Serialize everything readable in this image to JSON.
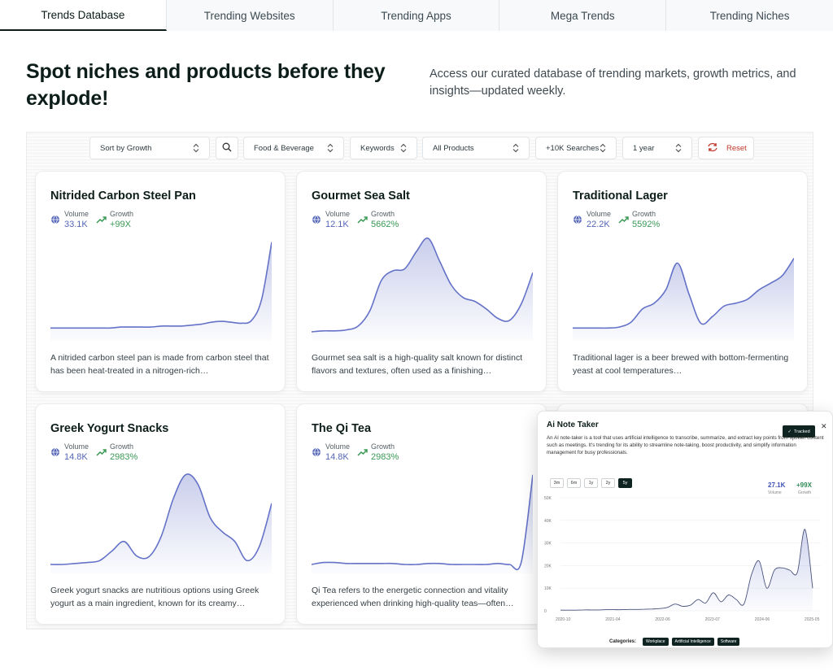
{
  "tabs": [
    {
      "label": "Trends Database",
      "active": true
    },
    {
      "label": "Trending Websites",
      "active": false
    },
    {
      "label": "Trending Apps",
      "active": false
    },
    {
      "label": "Mega Trends",
      "active": false
    },
    {
      "label": "Trending Niches",
      "active": false
    }
  ],
  "hero": {
    "title": "Spot niches and products before they explode!",
    "subtitle": "Access our curated database of trending markets, growth metrics, and insights—updated weekly."
  },
  "filters": {
    "sort": "Sort by Growth",
    "category": "Food & Beverage",
    "keywords": "Keywords",
    "products": "All Products",
    "searches": "+10K Searches",
    "period": "1 year",
    "reset": "Reset"
  },
  "icons": {
    "search": "search-icon",
    "volume": "globe-icon",
    "growth": "trending-up-icon",
    "reset": "refresh-icon",
    "chevron": "chevron-up-down-icon",
    "close": "close-icon",
    "check": "check-icon"
  },
  "colors": {
    "accent": "#0f2420",
    "volume": "#5566b8",
    "growth": "#3a9a55",
    "spark_line": "#6472c7",
    "reset": "#c0392b"
  },
  "metric_labels": {
    "volume": "Volume",
    "growth": "Growth"
  },
  "cards": [
    {
      "title": "Nitrided Carbon Steel Pan",
      "volume": "33.1K",
      "growth": "+99X",
      "description": "A nitrided carbon steel pan is made from carbon steel that has been heat-treated in a nitrogen-rich…",
      "trend": [
        10,
        10,
        10,
        10,
        10,
        10,
        10,
        11,
        11,
        11,
        11,
        12,
        12,
        12,
        13,
        14,
        16,
        17,
        16,
        15,
        18,
        40,
        100
      ]
    },
    {
      "title": "Gourmet Sea Salt",
      "volume": "12.1K",
      "growth": "5662%",
      "description": "Gourmet sea salt is a high-quality salt known for distinct flavors and textures, often used as a finishing…",
      "trend": [
        6,
        7,
        7,
        8,
        12,
        28,
        60,
        70,
        72,
        90,
        104,
        80,
        55,
        42,
        38,
        30,
        20,
        18,
        35,
        68
      ]
    },
    {
      "title": "Traditional Lager",
      "volume": "22.2K",
      "growth": "5592%",
      "description": "Traditional lager is a beer brewed with bottom-fermenting yeast at cool temperatures…",
      "trend": [
        10,
        10,
        10,
        10,
        11,
        16,
        30,
        36,
        50,
        78,
        45,
        15,
        22,
        33,
        36,
        40,
        50,
        57,
        65,
        83
      ]
    },
    {
      "title": "Greek Yogurt Snacks",
      "volume": "14.8K",
      "growth": "2983%",
      "description": "Greek yogurt snacks are nutritious options using Greek yogurt as a main ingredient, known for its creamy…",
      "trend": [
        6,
        6,
        7,
        8,
        10,
        20,
        30,
        15,
        14,
        35,
        75,
        100,
        90,
        55,
        40,
        30,
        10,
        25,
        70
      ]
    },
    {
      "title": "The Qi Tea",
      "volume": "14.8K",
      "growth": "2983%",
      "description": "Qi Tea refers to the energetic connection and vitality experienced when drinking high-quality teas—often…",
      "trend": [
        6,
        8,
        8,
        7,
        7,
        7,
        7,
        7,
        6,
        6,
        7,
        7,
        6,
        6,
        6,
        6,
        7,
        6,
        8,
        100
      ]
    }
  ],
  "popup": {
    "title": "Ai Note Taker",
    "tracked": "Tracked",
    "description": "An AI note-taker is a tool that uses artificial intelligence to transcribe, summarize, and extract key points from spoken content such as meetings. It's trending for its ability to streamline note-taking, boost productivity, and simplify information management for busy professionals.",
    "ranges": [
      {
        "label": "3m",
        "active": false
      },
      {
        "label": "6m",
        "active": false
      },
      {
        "label": "1y",
        "active": false
      },
      {
        "label": "2y",
        "active": false
      },
      {
        "label": "5y",
        "active": true
      }
    ],
    "volume": "27.1K",
    "volume_label": "Volume",
    "growth": "+99X",
    "growth_label": "Growth",
    "categories_label": "Categories:",
    "categories": [
      "Workplace",
      "Artificial Intelligence",
      "Software"
    ],
    "chart": {
      "y_ticks": [
        "50K",
        "40K",
        "30K",
        "20K",
        "10K",
        "0"
      ],
      "x_ticks": [
        "2020-10",
        "2021-04",
        "2022-06",
        "2023-07",
        "2024-06",
        "2025-05"
      ],
      "ylim": [
        0,
        50
      ],
      "values": [
        0.3,
        0.3,
        0.3,
        0.4,
        0.4,
        0.4,
        0.5,
        0.5,
        0.5,
        0.6,
        0.6,
        0.7,
        0.8,
        1,
        1.5,
        3,
        2,
        2.5,
        5,
        3.5,
        8,
        4,
        7,
        5,
        3,
        16,
        22,
        10,
        18,
        19,
        18,
        17,
        36,
        10
      ]
    }
  }
}
